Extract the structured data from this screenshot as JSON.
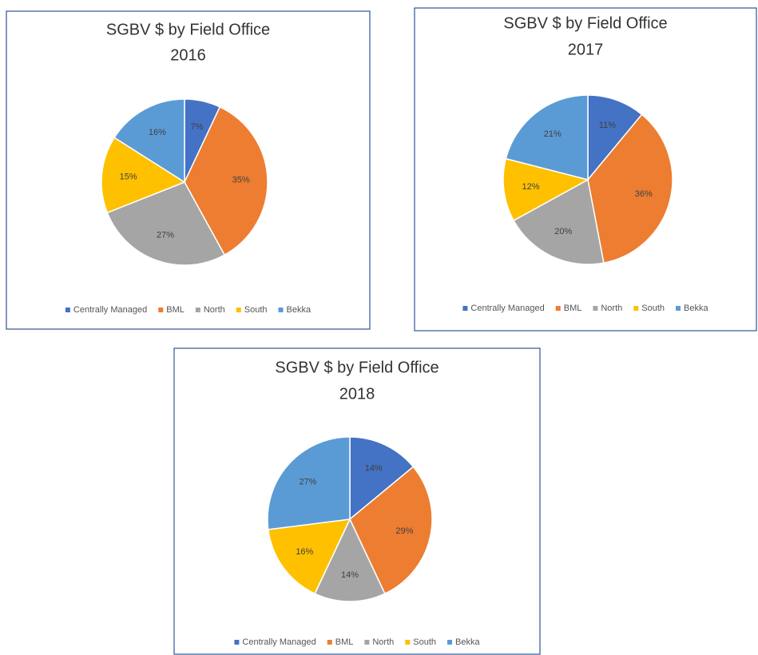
{
  "chart_data": [
    {
      "type": "pie",
      "title": "SGBV $ by Field Office",
      "subtitle": "2016",
      "categories": [
        "Centrally Managed",
        "BML",
        "North",
        "South",
        "Bekka"
      ],
      "values": [
        7,
        35,
        27,
        15,
        16
      ],
      "value_labels": [
        "7%",
        "35%",
        "27%",
        "15%",
        "16%"
      ],
      "colors": [
        "#4472c4",
        "#ed7d31",
        "#a5a5a5",
        "#ffc000",
        "#5b9bd5"
      ],
      "legend": "bottom"
    },
    {
      "type": "pie",
      "title": "SGBV $ by Field Office",
      "subtitle": "2017",
      "categories": [
        "Centrally Managed",
        "BML",
        "North",
        "South",
        "Bekka"
      ],
      "values": [
        11,
        36,
        20,
        12,
        21
      ],
      "value_labels": [
        "11%",
        "36%",
        "20%",
        "12%",
        "21%"
      ],
      "colors": [
        "#4472c4",
        "#ed7d31",
        "#a5a5a5",
        "#ffc000",
        "#5b9bd5"
      ],
      "legend": "bottom"
    },
    {
      "type": "pie",
      "title": "SGBV $ by Field Office",
      "subtitle": "2018",
      "categories": [
        "Centrally Managed",
        "BML",
        "North",
        "South",
        "Bekka"
      ],
      "values": [
        14,
        29,
        14,
        16,
        27
      ],
      "value_labels": [
        "14%",
        "29%",
        "14%",
        "16%",
        "27%"
      ],
      "colors": [
        "#4472c4",
        "#ed7d31",
        "#a5a5a5",
        "#ffc000",
        "#5b9bd5"
      ],
      "legend": "bottom"
    }
  ]
}
